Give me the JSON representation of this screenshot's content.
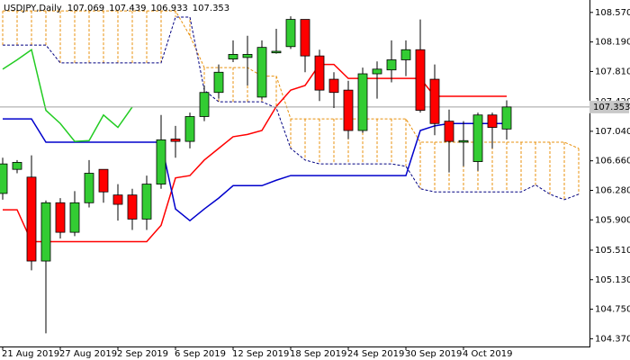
{
  "chart_data": {
    "type": "candlestick",
    "title": "USDJPY,Daily",
    "categories": [
      "21 Aug 2019",
      null,
      null,
      null,
      "27 Aug 2019",
      null,
      null,
      null,
      "2 Sep 2019",
      null,
      null,
      null,
      "6 Sep 2019",
      null,
      null,
      null,
      "12 Sep 2019",
      null,
      null,
      null,
      "18 Sep 2019",
      null,
      null,
      null,
      "24 Sep 2019",
      null,
      null,
      null,
      "30 Sep 2019",
      null,
      null,
      null,
      "4 Oct 2019",
      null,
      null,
      null,
      null,
      null,
      null,
      null,
      null
    ],
    "open": [
      106.24,
      106.55,
      106.45,
      105.37,
      106.12,
      105.74,
      106.12,
      106.55,
      106.22,
      106.22,
      105.91,
      106.36,
      106.94,
      106.91,
      107.23,
      107.54,
      107.97,
      107.99,
      107.48,
      108.05,
      108.13,
      108.48,
      108.01,
      107.71,
      107.57,
      107.05,
      107.78,
      107.83,
      107.96,
      108.09,
      107.71,
      107.17,
      106.9,
      106.65,
      107.25,
      107.069,
      null,
      null,
      null,
      null,
      null
    ],
    "high": [
      106.7,
      106.67,
      106.73,
      106.15,
      106.18,
      106.27,
      106.67,
      106.55,
      106.36,
      106.3,
      106.47,
      107.25,
      107.11,
      107.28,
      107.63,
      107.9,
      108.21,
      108.27,
      108.21,
      108.36,
      108.52,
      108.48,
      108.09,
      107.8,
      107.69,
      107.86,
      107.94,
      108.21,
      108.21,
      108.48,
      107.9,
      107.32,
      107.17,
      107.28,
      107.28,
      107.439,
      null,
      null,
      null,
      null,
      null
    ],
    "low": [
      106.16,
      106.5,
      105.25,
      104.44,
      105.66,
      105.69,
      106.06,
      106.12,
      105.89,
      105.77,
      105.77,
      106.3,
      106.7,
      106.82,
      107.17,
      107.46,
      107.93,
      107.63,
      107.45,
      108.04,
      108.1,
      107.8,
      107.43,
      107.34,
      106.94,
      107.02,
      107.46,
      107.67,
      107.75,
      107.28,
      106.99,
      106.51,
      106.59,
      106.53,
      106.82,
      106.933,
      null,
      null,
      null,
      null,
      null
    ],
    "close": [
      106.62,
      106.64,
      105.37,
      106.12,
      105.74,
      106.12,
      106.5,
      106.26,
      106.1,
      105.91,
      106.36,
      106.93,
      106.91,
      107.23,
      107.54,
      107.8,
      108.03,
      108.03,
      108.12,
      108.07,
      108.48,
      108.01,
      107.57,
      107.54,
      107.05,
      107.78,
      107.84,
      107.96,
      108.09,
      107.31,
      107.14,
      106.91,
      106.92,
      107.25,
      107.09,
      107.353,
      null,
      null,
      null,
      null,
      null
    ],
    "up_color": "#33cc33",
    "down_color": "#ff0000",
    "series": [
      {
        "color": "#e8900c",
        "dash": true,
        "values": [
          108.59,
          108.59,
          108.59,
          108.59,
          108.59,
          108.59,
          108.59,
          108.59,
          108.59,
          108.59,
          108.59,
          108.59,
          108.59,
          108.27,
          107.86,
          107.86,
          107.86,
          107.86,
          107.75,
          107.75,
          107.2,
          107.2,
          107.2,
          107.2,
          107.2,
          107.2,
          107.2,
          107.2,
          107.2,
          106.9,
          106.9,
          106.9,
          106.9,
          106.9,
          106.9,
          106.9,
          106.9,
          106.9,
          106.9,
          106.9,
          106.82
        ]
      },
      {
        "color": "#000080",
        "dash": true,
        "values": [
          108.15,
          108.15,
          108.15,
          108.15,
          107.92,
          107.92,
          107.92,
          107.92,
          107.92,
          107.92,
          107.92,
          107.92,
          108.51,
          108.51,
          107.57,
          107.42,
          107.42,
          107.42,
          107.42,
          107.34,
          106.82,
          106.67,
          106.62,
          106.62,
          106.62,
          106.62,
          106.62,
          106.62,
          106.59,
          106.3,
          106.26,
          106.26,
          106.26,
          106.26,
          106.26,
          106.26,
          106.26,
          106.35,
          106.23,
          106.16,
          106.23
        ]
      },
      {
        "color": "#ff0000",
        "dash": false,
        "values": [
          106.03,
          106.03,
          105.62,
          105.62,
          105.62,
          105.62,
          105.62,
          105.62,
          105.62,
          105.62,
          105.62,
          105.83,
          106.44,
          106.47,
          106.67,
          106.82,
          106.97,
          107.0,
          107.05,
          107.36,
          107.57,
          107.63,
          107.9,
          107.9,
          107.72,
          107.72,
          107.72,
          107.72,
          107.72,
          107.72,
          107.49,
          107.49,
          107.49,
          107.49,
          107.49,
          107.49,
          null,
          null,
          null,
          null,
          null
        ]
      },
      {
        "color": "#0000cc",
        "dash": false,
        "values": [
          107.2,
          107.2,
          107.2,
          106.9,
          106.9,
          106.9,
          106.9,
          106.9,
          106.9,
          106.9,
          106.9,
          106.9,
          106.04,
          105.89,
          106.04,
          106.18,
          106.34,
          106.34,
          106.34,
          106.41,
          106.47,
          106.47,
          106.47,
          106.47,
          106.47,
          106.47,
          106.47,
          106.47,
          106.47,
          107.05,
          107.11,
          107.14,
          107.14,
          107.14,
          107.14,
          107.14,
          null,
          null,
          null,
          null,
          null
        ]
      },
      {
        "color": "#22cc22",
        "dash": false,
        "values": [
          107.84,
          107.96,
          108.09,
          107.31,
          107.14,
          106.91,
          106.92,
          107.25,
          107.09,
          107.353,
          null,
          null,
          null,
          null,
          null,
          null,
          null,
          null,
          null,
          null,
          null,
          null,
          null,
          null,
          null,
          null,
          null,
          null,
          null,
          null,
          null,
          null,
          null,
          null,
          null,
          null,
          null,
          null,
          null,
          null,
          null
        ]
      }
    ],
    "cloud_color": "#e8900c",
    "price_line_color": "#a0a0a0",
    "ylim": [
      104.27,
      108.73
    ],
    "yticks": [
      {
        "value": 108.57,
        "label": "108.570"
      },
      {
        "value": 108.19,
        "label": "108.190"
      },
      {
        "value": 107.81,
        "label": "107.810"
      },
      {
        "value": 107.42,
        "label": "107.420"
      },
      {
        "value": 107.04,
        "label": "107.040"
      },
      {
        "value": 106.66,
        "label": "106.660"
      },
      {
        "value": 106.28,
        "label": "106.280"
      },
      {
        "value": 105.9,
        "label": "105.900"
      },
      {
        "value": 105.51,
        "label": "105.510"
      },
      {
        "value": 105.13,
        "label": "105.130"
      },
      {
        "value": 104.75,
        "label": "104.750"
      },
      {
        "value": 104.37,
        "label": "104.370"
      }
    ]
  }
}
